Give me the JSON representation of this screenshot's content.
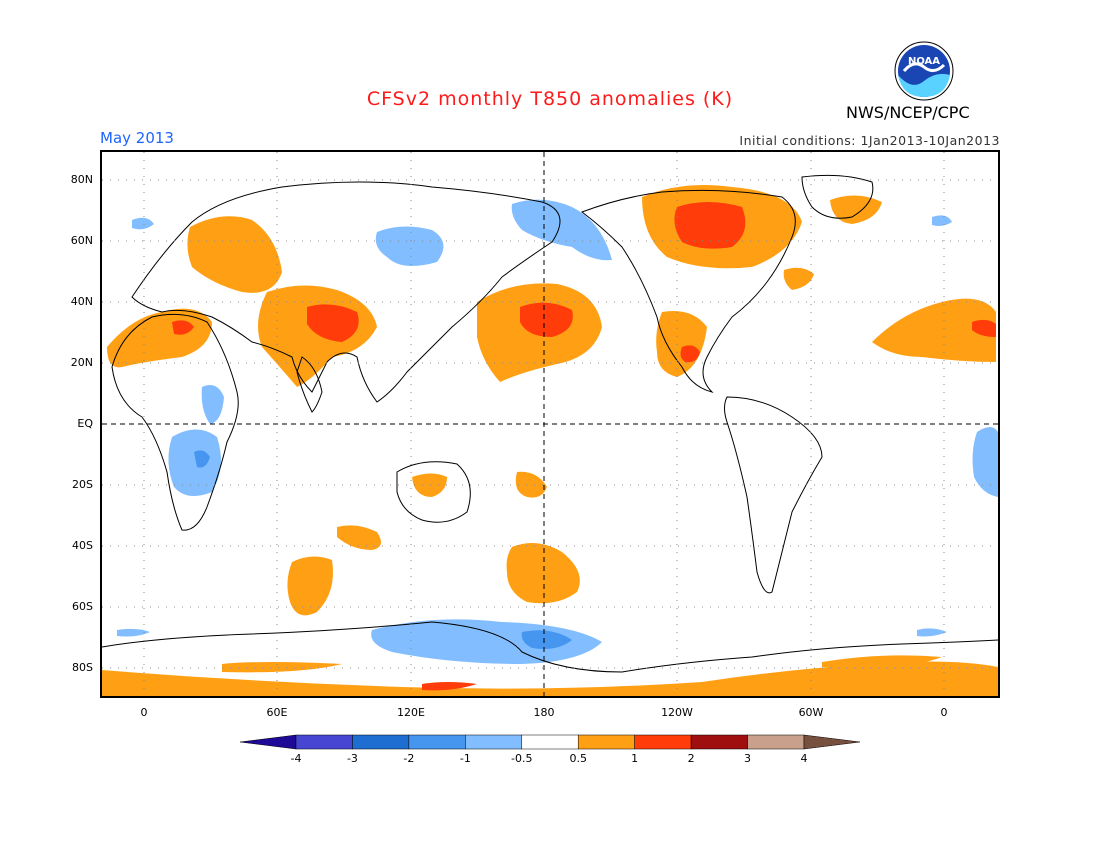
{
  "title": "CFSv2 monthly T850 anomalies (K)",
  "month": "May 2013",
  "initial_conditions": "Initial conditions: 1Jan2013-10Jan2013",
  "agency": "NWS/NCEP/CPC",
  "logo_text": "NOAA",
  "y_axis_labels": [
    "80N",
    "60N",
    "40N",
    "20N",
    "EQ",
    "20S",
    "40S",
    "60S",
    "80S"
  ],
  "x_axis_labels": [
    "0",
    "60E",
    "120E",
    "180",
    "120W",
    "60W",
    "0"
  ],
  "colorbar": {
    "labels": [
      "-4",
      "-3",
      "-2",
      "-1",
      "-0.5",
      "0.5",
      "1",
      "2",
      "3",
      "4"
    ],
    "colors": [
      "#1e0a96",
      "#4646d2",
      "#1e6ed2",
      "#4696f0",
      "#82beff",
      "#ffffff",
      "#ffa014",
      "#ff3c0a",
      "#a00f0f",
      "#c8a08c",
      "#785040"
    ]
  },
  "anomaly_colors": {
    "warm_1": "#ffa014",
    "warm_2": "#ff3c0a",
    "cool_1": "#82beff",
    "cool_2": "#4696f0"
  }
}
